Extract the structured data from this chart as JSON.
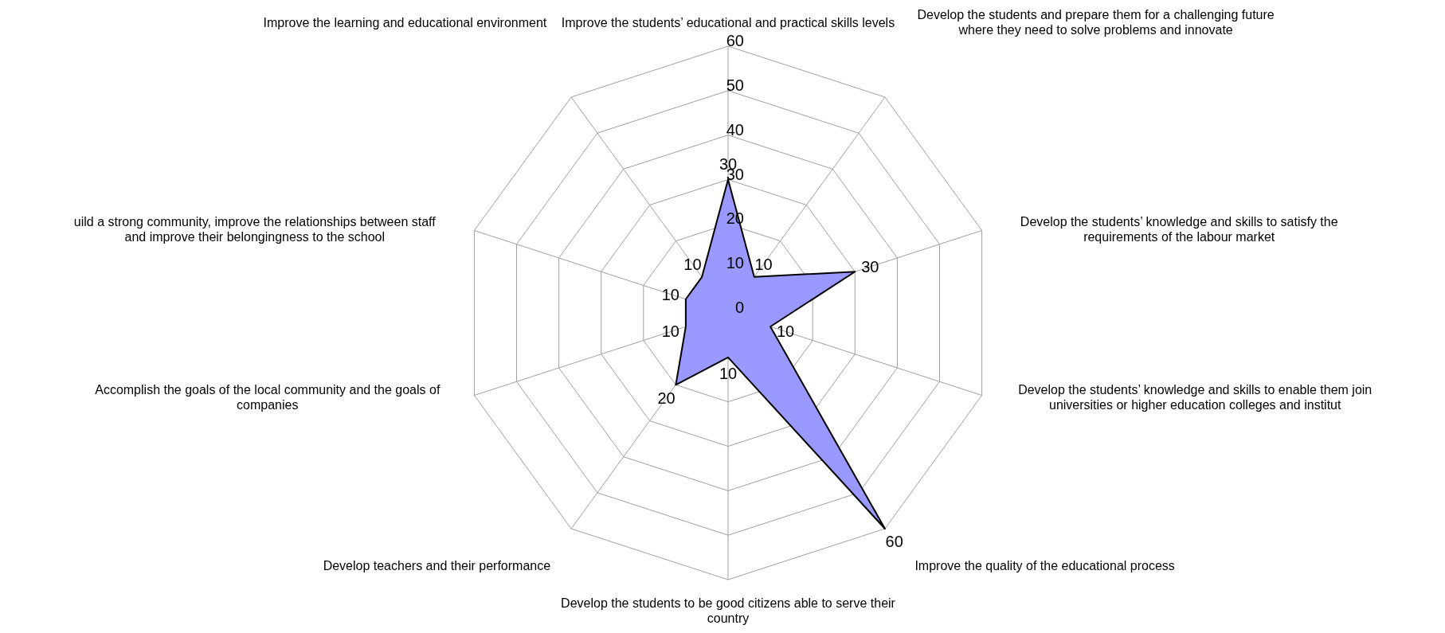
{
  "chart_data": {
    "type": "radar",
    "categories": [
      "Improve the students’ educational and practical skills levels",
      "Develop the students and prepare them for a challenging future where they need to solve problems and innovate",
      "Develop the students’ knowledge and skills to satisfy the requirements of the labour market",
      "Develop the students’ knowledge and skills to enable them join universities or higher education colleges and institut",
      "Improve the quality of the educational process",
      "Develop the students to be good citizens able to serve their country",
      "Develop teachers and their performance",
      "Accomplish the goals of the local community and the goals of companies",
      "uild a strong community, improve the relationships between staff and improve their belongingness to the school",
      "Improve the learning and educational environment"
    ],
    "series": [
      {
        "color": "#9999ff",
        "values": [
          30,
          10,
          30,
          10,
          60,
          10,
          20,
          10,
          10,
          10
        ]
      }
    ],
    "ylim": [
      0,
      60
    ],
    "yticks": [
      0,
      10,
      20,
      30,
      40,
      50,
      60
    ],
    "grid": true,
    "data_labels": true
  }
}
